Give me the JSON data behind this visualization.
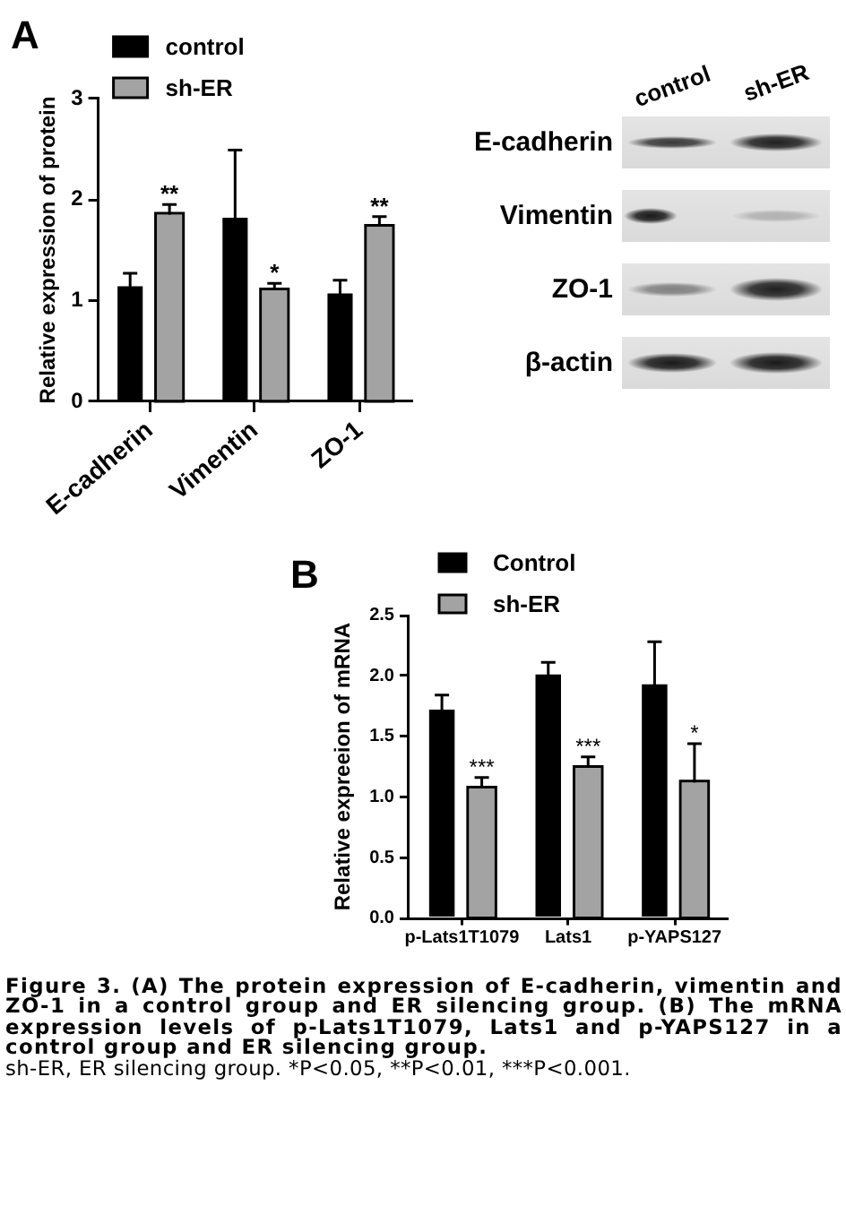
{
  "chart_data": [
    {
      "type": "bar",
      "title": "A",
      "ylabel": "Relative expression of protein",
      "categories": [
        "E-cadherin",
        "Vimentin",
        "ZO-1"
      ],
      "series": [
        {
          "name": "control",
          "color": "#000000",
          "values": [
            1.14,
            1.82,
            1.07
          ],
          "errors": [
            0.13,
            0.67,
            0.13
          ]
        },
        {
          "name": "sh-ER",
          "color": "#a3a3a3",
          "values": [
            1.85,
            1.1,
            1.73
          ],
          "errors": [
            0.1,
            0.07,
            0.1
          ]
        }
      ],
      "ylim": [
        0,
        3
      ],
      "yticks": [
        0,
        1,
        2,
        3
      ],
      "legend": "top left",
      "annotations": [
        {
          "text": "**",
          "x": "E-cadherin",
          "y": 1.85
        },
        {
          "text": "*",
          "x": "Vimentin",
          "y": 1.1
        },
        {
          "text": "**",
          "x": "ZO-1",
          "y": 1.73
        }
      ]
    },
    {
      "type": "other",
      "categories": [
        "control",
        "sh-ER"
      ],
      "y_categories": [
        "E-cadherin",
        "Vimentin",
        "ZO-1",
        "β-actin"
      ]
    },
    {
      "type": "bar",
      "title": "B",
      "ylabel": "Relative expreeion of mRNA",
      "categories": [
        "p-Lats1T1079",
        "Lats1",
        "p-YAPS127"
      ],
      "series": [
        {
          "name": "Control",
          "color": "#000000",
          "values": [
            1.72,
            2.01,
            1.93
          ],
          "errors": [
            0.12,
            0.1,
            0.35
          ]
        },
        {
          "name": "sh-ER",
          "color": "#a3a3a3",
          "values": [
            1.07,
            1.24,
            1.12
          ],
          "errors": [
            0.09,
            0.09,
            0.32
          ]
        }
      ],
      "ylim": [
        0,
        2.5
      ],
      "yticks": [
        {
          "value": 0,
          "label": "0.0"
        },
        0.5,
        {
          "value": 1,
          "label": "1.0"
        },
        1.5,
        {
          "value": 2,
          "label": "2.0"
        },
        2.5
      ],
      "legend": "top left",
      "annotations": [
        {
          "text": "***",
          "x": "p-Lats1T1079",
          "y": 1.07
        },
        {
          "text": "***",
          "x": "Lats1",
          "y": 1.24
        },
        {
          "text": "*",
          "x": "p-YAPS127",
          "y": 1.12
        },
        "Figure 3. (A) The protein expression of E-cadherin, vimentin and ZO-1 in a control group and ER silencing group. (B) The mRNA expression levels of p-Lats1T1079, Lats1 and p-YAPS127 in a control group and ER silencing group.",
        "sh-ER, ER silencing group. *P<0.05, **P<0.01, ***P<0.001."
      ]
    }
  ]
}
